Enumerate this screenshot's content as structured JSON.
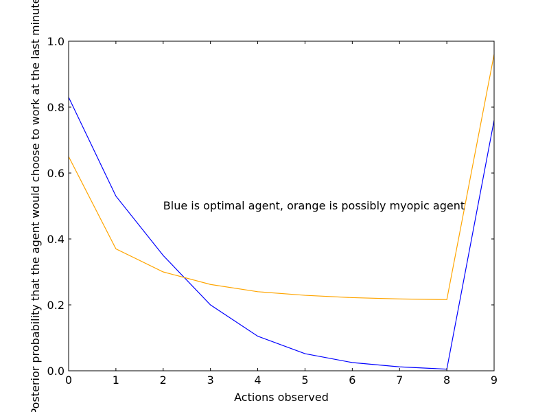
{
  "chart_data": {
    "type": "line",
    "title": "",
    "xlabel": "Actions observed",
    "ylabel": "Posterior probability that the agent would choose to work at the last minute",
    "xlim": [
      0,
      9
    ],
    "ylim": [
      0,
      1.0
    ],
    "xticks": [
      0,
      1,
      2,
      3,
      4,
      5,
      6,
      7,
      8,
      9
    ],
    "xtick_labels": [
      "0",
      "1",
      "2",
      "3",
      "4",
      "5",
      "6",
      "7",
      "8",
      "9"
    ],
    "yticks": [
      0,
      0.2,
      0.4,
      0.6,
      0.8,
      1.0
    ],
    "ytick_labels": [
      "0.0",
      "0.2",
      "0.4",
      "0.6",
      "0.8",
      "1.0"
    ],
    "grid": false,
    "x": [
      0,
      1,
      2,
      3,
      4,
      5,
      6,
      7,
      8,
      9
    ],
    "series": [
      {
        "color": "#0000ff",
        "values": [
          0.83,
          0.53,
          0.35,
          0.2,
          0.105,
          0.052,
          0.025,
          0.012,
          0.005,
          0.76
        ]
      },
      {
        "color": "#ffa500",
        "values": [
          0.65,
          0.37,
          0.3,
          0.262,
          0.24,
          0.229,
          0.222,
          0.218,
          0.216,
          0.96
        ]
      }
    ],
    "annotation": {
      "text": "Blue is optimal agent, orange is possibly myopic agent",
      "x": 2,
      "y": 0.5
    }
  }
}
